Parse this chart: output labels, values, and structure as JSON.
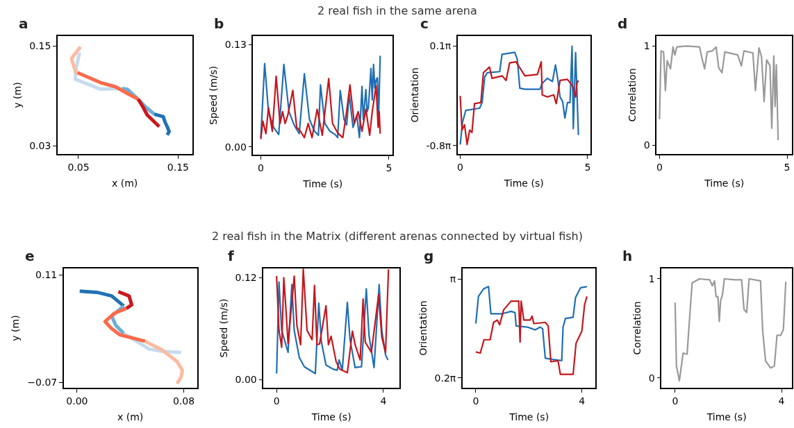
{
  "chart_data": [
    {
      "type": "other",
      "title": "2 real fish in the same arena"
    },
    {
      "type": "line",
      "title": "a",
      "xlabel": "x (m)",
      "ylabel": "y (m)",
      "xlim": [
        0.029,
        0.164
      ],
      "ylim": [
        0.02,
        0.162
      ],
      "xticks": [
        0.05,
        0.15
      ],
      "yticks": [
        0.15,
        0.03
      ],
      "grid": false,
      "series": [
        {
          "color": "#c6dbef",
          "x": [
            0.051,
            0.047,
            0.047,
            0.072,
            0.094
          ],
          "values": [
            0.142,
            0.119,
            0.11,
            0.098,
            0.099
          ]
        },
        {
          "color": "#6baed6",
          "x": [
            0.094,
            0.099,
            0.108,
            0.118,
            0.126
          ],
          "values": [
            0.099,
            0.098,
            0.088,
            0.076,
            0.068
          ]
        },
        {
          "color": "#2171b5",
          "x": [
            0.126,
            0.135,
            0.137,
            0.139,
            0.141,
            0.139
          ],
          "values": [
            0.068,
            0.065,
            0.058,
            0.053,
            0.047,
            0.043
          ]
        },
        {
          "color": "#fcbba1",
          "x": [
            0.052,
            0.043,
            0.047,
            0.049
          ],
          "values": [
            0.149,
            0.135,
            0.119,
            0.118
          ]
        },
        {
          "color": "#fb6a4a",
          "x": [
            0.049,
            0.072,
            0.087,
            0.102,
            0.11
          ],
          "values": [
            0.118,
            0.106,
            0.101,
            0.091,
            0.086
          ]
        },
        {
          "color": "#cb181d",
          "x": [
            0.11,
            0.115,
            0.119,
            0.131
          ],
          "values": [
            0.086,
            0.076,
            0.067,
            0.053
          ]
        }
      ]
    },
    {
      "type": "line",
      "title": "b",
      "xlabel": "Time (s)",
      "ylabel": "Speed (m/s)",
      "xlim": [
        -0.3,
        5.14
      ],
      "ylim": [
        -0.0097,
        0.141
      ],
      "xticks": [
        0,
        5
      ],
      "yticks": [
        {
          "value": 0,
          "label": "0.00"
        },
        0.13
      ],
      "grid": false,
      "series": [
        {
          "color": "#1f6eb5",
          "x": [
            0,
            0.15,
            0.3,
            0.5,
            0.7,
            0.9,
            1.1,
            1.3,
            1.5,
            1.7,
            1.9,
            2.1,
            2.25,
            2.33,
            2.5,
            2.7,
            2.9,
            3.0,
            3.1,
            3.25,
            3.35,
            3.45,
            3.6,
            3.75,
            3.85,
            3.95,
            4.0,
            4.1,
            4.15,
            4.2,
            4.3,
            4.35,
            4.4,
            4.45,
            4.5,
            4.55,
            4.6,
            4.66
          ],
          "values": [
            0.012,
            0.106,
            0.045,
            0.025,
            0.016,
            0.105,
            0.045,
            0.028,
            0.017,
            0.093,
            0.035,
            0.02,
            0.015,
            0.079,
            0.03,
            0.02,
            0.016,
            0.012,
            0.072,
            0.035,
            0.028,
            0.067,
            0.025,
            0.04,
            0.012,
            0.077,
            0.035,
            0.073,
            0.045,
            0.05,
            0.1,
            0.06,
            0.105,
            0.075,
            0.085,
            0.088,
            0.04,
            0.116
          ]
        },
        {
          "color": "#c4161c",
          "x": [
            0,
            0.08,
            0.2,
            0.3,
            0.45,
            0.6,
            0.75,
            0.85,
            0.95,
            1.05,
            1.25,
            1.4,
            1.55,
            1.7,
            1.85,
            2.0,
            2.2,
            2.4,
            2.65,
            2.8,
            3.0,
            3.2,
            3.35,
            3.48,
            3.65,
            3.8,
            3.95,
            4.1,
            4.25,
            4.35,
            4.5,
            4.58,
            4.62,
            4.66
          ],
          "values": [
            0.01,
            0.033,
            0.017,
            0.05,
            0.02,
            0.09,
            0.03,
            0.045,
            0.03,
            0.04,
            0.072,
            0.025,
            0.02,
            0.012,
            0.03,
            0.012,
            0.048,
            0.015,
            0.087,
            0.03,
            0.018,
            0.012,
            0.045,
            0.079,
            0.03,
            0.045,
            0.02,
            0.048,
            0.015,
            0.045,
            0.078,
            0.025,
            0.045,
            0.017
          ]
        }
      ]
    },
    {
      "type": "line",
      "title": "c",
      "xlabel": "Time (s)",
      "ylabel": "Orientation",
      "xlim": [
        -0.1,
        5.1
      ],
      "ylim": [
        -2.75,
        0.6
      ],
      "xticks": [
        0,
        5
      ],
      "yticks": [
        {
          "value": 0.31416,
          "label": "0.1π"
        },
        {
          "value": -2.51327,
          "label": "-0.8π"
        }
      ],
      "grid": false,
      "series": [
        {
          "color": "#1f6eb5",
          "x": [
            0,
            0.09,
            0.22,
            0.76,
            0.86,
            0.96,
            1.06,
            1.55,
            1.64,
            2.14,
            2.24,
            2.34,
            2.54,
            3.13,
            3.22,
            3.42,
            3.62,
            3.74,
            3.82,
            3.92,
            4.02,
            4.11,
            4.21,
            4.31,
            4.39,
            4.44,
            4.53,
            4.64
          ],
          "values": [
            -2.48,
            -1.85,
            -1.51,
            -1.45,
            -1.29,
            -0.57,
            -0.44,
            -0.41,
            0.08,
            0.14,
            -0.06,
            -0.88,
            -0.91,
            -0.91,
            -0.74,
            -0.6,
            -0.69,
            -0.22,
            -0.57,
            -1.13,
            -1.26,
            -1.73,
            -1.29,
            -1.29,
            0.31,
            -2.03,
            0.13,
            -2.21
          ]
        },
        {
          "color": "#c4161c",
          "x": [
            0,
            0.07,
            0.17,
            0.27,
            0.37,
            0.46,
            0.56,
            0.81,
            0.91,
            1.15,
            1.25,
            1.65,
            1.8,
            1.94,
            2.19,
            2.54,
            3.03,
            3.18,
            3.22,
            3.42,
            3.67,
            3.77,
            3.92,
            4.21,
            4.41,
            4.53,
            4.58,
            4.64
          ],
          "values": [
            -1.1,
            -2.07,
            -1.92,
            -2.48,
            -2.07,
            -2.14,
            -1.32,
            -1.29,
            -0.44,
            -0.28,
            -0.6,
            -0.53,
            -0.66,
            -0.16,
            -0.13,
            -0.53,
            -0.49,
            -0.13,
            -1.07,
            -1.13,
            -1.07,
            -1.32,
            -0.66,
            -0.63,
            -0.82,
            -1.13,
            -0.74,
            -0.66
          ]
        }
      ]
    },
    {
      "type": "line",
      "title": "d",
      "xlabel": "Time (s)",
      "ylabel": "Correlation",
      "xlim": [
        -0.11,
        5.19
      ],
      "ylim": [
        -0.09,
        1.1
      ],
      "xticks": [
        0,
        5
      ],
      "yticks": [
        0,
        1
      ],
      "grid": false,
      "series": [
        {
          "color": "#999999",
          "x": [
            0,
            0.06,
            0.16,
            0.23,
            0.3,
            0.43,
            0.53,
            0.6,
            0.68,
            1.07,
            1.57,
            1.67,
            1.77,
            1.87,
            2.07,
            2.22,
            2.32,
            2.45,
            2.56,
            3.06,
            3.21,
            3.31,
            3.66,
            3.76,
            3.9,
            4.0,
            4.1,
            4.2,
            4.33,
            4.4,
            4.48,
            4.53,
            4.58,
            4.65
          ],
          "values": [
            0.26,
            0.95,
            0.94,
            0.55,
            0.85,
            0.77,
            0.99,
            0.91,
            0.99,
            1.0,
            0.99,
            0.87,
            0.77,
            0.94,
            0.95,
            0.99,
            0.78,
            0.73,
            0.94,
            0.91,
            0.8,
            0.95,
            0.93,
            0.55,
            0.98,
            0.89,
            0.44,
            0.86,
            0.8,
            0.17,
            0.9,
            0.39,
            0.81,
            0.05
          ]
        }
      ]
    },
    {
      "type": "other",
      "title": "2 real fish in the Matrix (different arenas connected by virtual fish)"
    },
    {
      "type": "line",
      "title": "e",
      "xlabel": "x (m)",
      "ylabel": "y (m)",
      "xlim": [
        -0.0099,
        0.0899
      ],
      "ylim": [
        -0.079,
        0.121
      ],
      "xticks": [
        {
          "value": 0,
          "label": "0.00"
        },
        0.08
      ],
      "yticks": [
        0.11,
        {
          "value": -0.07,
          "label": "−0.07"
        }
      ],
      "grid": false,
      "series": [
        {
          "color": "#2171b5",
          "x": [
            0.002,
            0.015,
            0.026,
            0.035
          ],
          "values": [
            0.083,
            0.081,
            0.075,
            0.058
          ]
        },
        {
          "color": "#6baed6",
          "x": [
            0.035,
            0.026,
            0.029,
            0.035
          ],
          "values": [
            0.058,
            0.041,
            0.026,
            0.012
          ]
        },
        {
          "color": "#c6dbef",
          "x": [
            0.035,
            0.054,
            0.064,
            0.078
          ],
          "values": [
            0.012,
            -0.014,
            -0.018,
            -0.02
          ]
        },
        {
          "color": "#cb181d",
          "x": [
            0.031,
            0.039,
            0.041,
            0.037
          ],
          "values": [
            0.082,
            0.075,
            0.06,
            0.054
          ]
        },
        {
          "color": "#fb6a4a",
          "x": [
            0.037,
            0.028,
            0.021,
            0.026,
            0.032,
            0.051
          ],
          "values": [
            0.054,
            0.046,
            0.032,
            0.02,
            0.01,
            -0.001
          ]
        },
        {
          "color": "#fcbba1",
          "x": [
            0.051,
            0.064,
            0.075,
            0.079,
            0.078,
            0.075
          ],
          "values": [
            -0.001,
            -0.016,
            -0.035,
            -0.05,
            -0.061,
            -0.072
          ]
        }
      ]
    },
    {
      "type": "line",
      "title": "f",
      "xlabel": "Time (s)",
      "ylabel": "Speed (m/s)",
      "xlim": [
        -0.49,
        4.6
      ],
      "ylim": [
        -0.0098,
        0.131
      ],
      "xticks": [
        0,
        4
      ],
      "yticks": [
        {
          "value": 0,
          "label": "0.00"
        },
        0.12
      ],
      "grid": false,
      "series": [
        {
          "color": "#1f6eb5",
          "x": [
            0,
            0.09,
            0.19,
            0.43,
            0.57,
            0.66,
            0.85,
            1.04,
            1.45,
            1.58,
            1.68,
            1.85,
            2.13,
            2.27,
            2.34,
            2.46,
            2.65,
            2.75,
            2.94,
            3.18,
            3.36,
            3.46,
            3.65,
            3.84,
            3.94,
            4.08,
            4.17
          ],
          "values": [
            0.007,
            0.115,
            0.058,
            0.032,
            0.112,
            0.058,
            0.026,
            0.015,
            0.007,
            0.09,
            0.044,
            0.017,
            0.012,
            0.011,
            0.023,
            0.011,
            0.091,
            0.047,
            0.014,
            0.015,
            0.107,
            0.052,
            0.014,
            0.112,
            0.058,
            0.029,
            0.023
          ]
        },
        {
          "color": "#c4161c",
          "x": [
            0,
            0.09,
            0.19,
            0.27,
            0.34,
            0.43,
            0.66,
            0.76,
            0.9,
            1.0,
            1.14,
            1.33,
            1.42,
            1.51,
            1.61,
            1.85,
            1.94,
            2.04,
            2.23,
            2.37,
            2.65,
            2.84,
            2.94,
            3.13,
            3.24,
            3.32,
            3.55,
            3.82,
            3.94,
            4.08,
            4.19
          ],
          "values": [
            0.122,
            0.058,
            0.038,
            0.12,
            0.088,
            0.042,
            0.122,
            0.064,
            0.041,
            0.13,
            0.058,
            0.047,
            0.111,
            0.041,
            0.042,
            0.087,
            0.041,
            0.051,
            0.021,
            0.012,
            0.008,
            0.057,
            0.041,
            0.023,
            0.095,
            0.044,
            0.032,
            0.1,
            0.05,
            0.032,
            0.13
          ]
        }
      ]
    },
    {
      "type": "line",
      "title": "g",
      "xlabel": "Time (s)",
      "ylabel": "Orientation",
      "xlim": [
        -0.5,
        4.52
      ],
      "ylim": [
        0.38,
        3.41
      ],
      "xticks": [
        0,
        4
      ],
      "yticks": [
        {
          "value": 3.14159,
          "label": "π"
        },
        {
          "value": 0.62832,
          "label": "0.2π"
        }
      ],
      "grid": false,
      "series": [
        {
          "color": "#1f6eb5",
          "x": [
            0,
            0.1,
            0.29,
            0.48,
            0.57,
            1.0,
            1.33,
            1.48,
            1.52,
            1.95,
            2.24,
            2.43,
            2.52,
            2.62,
            2.9,
            3.24,
            3.29,
            3.38,
            3.67,
            3.76,
            3.95,
            4.19
          ],
          "values": [
            2.01,
            2.7,
            2.89,
            2.95,
            2.26,
            2.26,
            2.32,
            2.29,
            1.95,
            1.92,
            1.85,
            1.92,
            1.88,
            1.13,
            1.1,
            1.07,
            1.92,
            2.14,
            2.17,
            2.67,
            2.92,
            2.95
          ]
        },
        {
          "color": "#c4161c",
          "x": [
            0,
            0.17,
            0.31,
            0.54,
            0.67,
            0.81,
            0.9,
            1.05,
            1.33,
            1.62,
            1.67,
            1.71,
            1.81,
            2.05,
            2.12,
            2.19,
            2.62,
            2.73,
            2.83,
            3.1,
            3.19,
            3.67,
            3.78,
            4.0,
            4.1,
            4.19
          ],
          "values": [
            1.29,
            1.26,
            1.6,
            1.6,
            2.04,
            2.1,
            1.98,
            2.36,
            2.58,
            2.58,
            1.54,
            2.58,
            2.1,
            2.1,
            2.2,
            2.01,
            2.04,
            1.95,
            1.04,
            1.07,
            0.72,
            0.72,
            1.51,
            1.82,
            2.48,
            2.7
          ]
        }
      ]
    },
    {
      "type": "line",
      "title": "h",
      "xlabel": "Time (s)",
      "ylabel": "Correlation",
      "xlim": [
        -0.51,
        4.39
      ],
      "ylim": [
        -0.1,
        1.105
      ],
      "xticks": [
        0,
        4
      ],
      "yticks": [
        0,
        1
      ],
      "grid": false,
      "series": [
        {
          "color": "#999999",
          "x": [
            0,
            0.05,
            0.16,
            0.3,
            0.45,
            0.52,
            0.64,
            0.78,
            0.92,
            1.3,
            1.4,
            1.48,
            1.54,
            1.61,
            1.66,
            1.71,
            1.78,
            1.85,
            2.26,
            2.5,
            2.59,
            2.69,
            2.78,
            3.21,
            3.29,
            3.4,
            3.59,
            3.73,
            3.83,
            3.97,
            4.07,
            4.16
          ],
          "values": [
            0.76,
            0.12,
            -0.03,
            0.25,
            0.24,
            0.51,
            0.96,
            0.98,
            1.0,
            0.99,
            0.93,
            0.98,
            0.82,
            0.82,
            0.57,
            0.78,
            0.84,
            1.0,
            0.99,
            0.99,
            0.69,
            0.66,
            1.0,
            0.98,
            0.48,
            0.17,
            0.1,
            0.12,
            0.43,
            0.43,
            0.49,
            0.97
          ]
        }
      ]
    }
  ]
}
